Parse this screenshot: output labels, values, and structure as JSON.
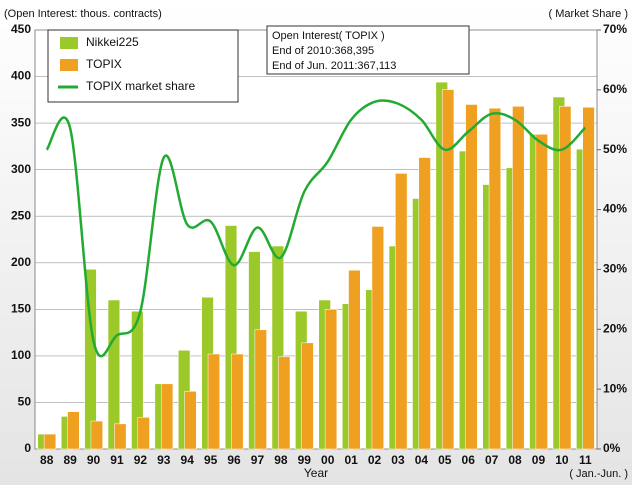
{
  "chart_data": {
    "type": "bar",
    "y_axis_label": "(Open Interest: thous. contracts)",
    "y2_axis_label": "( Market Share )",
    "x_axis_label": "Year",
    "x_note": "( Jan.-Jun. )",
    "annotation": [
      "Open Interest( TOPIX )",
      "End of 2010:368,395",
      "End of Jun. 2011:367,113"
    ],
    "categories": [
      "88",
      "89",
      "90",
      "91",
      "92",
      "93",
      "94",
      "95",
      "96",
      "97",
      "98",
      "99",
      "00",
      "01",
      "02",
      "03",
      "04",
      "05",
      "06",
      "07",
      "08",
      "09",
      "10",
      "11"
    ],
    "series": [
      {
        "name": "Nikkei225",
        "color": "#9cc92a",
        "values": [
          16,
          35,
          193,
          160,
          148,
          70,
          106,
          163,
          240,
          212,
          218,
          148,
          160,
          156,
          171,
          218,
          269,
          394,
          320,
          284,
          302,
          338,
          378,
          322
        ]
      },
      {
        "name": "TOPIX",
        "color": "#f0a020",
        "values": [
          16,
          40,
          30,
          27,
          34,
          70,
          62,
          102,
          102,
          128,
          99,
          114,
          150,
          192,
          239,
          296,
          313,
          386,
          370,
          366,
          368,
          338,
          368,
          367
        ]
      },
      {
        "name": "TOPIX market share",
        "color": "#22aa33",
        "axis": "y2",
        "line": true,
        "values": [
          50,
          53.6,
          18,
          19,
          23,
          48.7,
          37.5,
          38,
          30.7,
          37,
          32,
          43,
          48,
          55,
          58,
          57.7,
          55,
          50,
          53,
          56,
          55,
          51.5,
          50,
          53.7
        ]
      }
    ],
    "ylim": [
      0,
      450
    ],
    "yticks": [
      0,
      50,
      100,
      150,
      200,
      250,
      300,
      350,
      400,
      450
    ],
    "y2lim": [
      0,
      70
    ],
    "y2ticks": [
      {
        "value": 0,
        "label": "0%"
      },
      {
        "value": 10,
        "label": "10%"
      },
      {
        "value": 20,
        "label": "20%"
      },
      {
        "value": 30,
        "label": "30%"
      },
      {
        "value": 40,
        "label": "40%"
      },
      {
        "value": 50,
        "label": "50%"
      },
      {
        "value": 60,
        "label": "60%"
      },
      {
        "value": 70,
        "label": "70%"
      }
    ],
    "grid": true,
    "legend": "top-left"
  }
}
